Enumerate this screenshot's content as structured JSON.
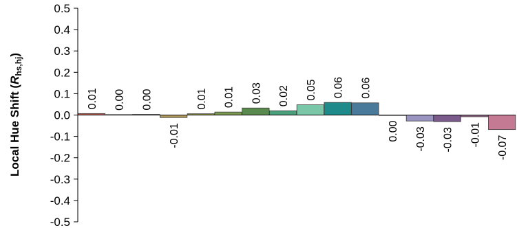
{
  "chart_data": {
    "type": "bar",
    "ylabel": {
      "prefix": "Local Hue Shift (",
      "var": "R",
      "sub": "hs,hj",
      "suffix": ")"
    },
    "ylim": [
      -0.5,
      0.5
    ],
    "yticks": [
      "0.5",
      "0.4",
      "0.3",
      "0.2",
      "0.1",
      "0.0",
      "-0.1",
      "-0.2",
      "-0.3",
      "-0.4",
      "-0.5"
    ],
    "grid": false,
    "values": [
      0.01,
      0.0,
      0.0,
      -0.01,
      0.01,
      0.01,
      0.03,
      0.02,
      0.05,
      0.06,
      0.06,
      0.0,
      -0.03,
      -0.03,
      -0.01,
      -0.07
    ],
    "value_labels": [
      "0.01",
      "0.00",
      "0.00",
      "-0.01",
      "0.01",
      "0.01",
      "0.03",
      "0.02",
      "0.05",
      "0.06",
      "0.06",
      "0.00",
      "-0.03",
      "-0.03",
      "-0.01",
      "-0.07"
    ],
    "plot_values": [
      0.007,
      0.002,
      0.003,
      -0.012,
      0.006,
      0.014,
      0.033,
      0.02,
      0.048,
      0.059,
      0.057,
      0.0,
      -0.028,
      -0.031,
      -0.008,
      -0.068
    ],
    "colors": [
      "#b85a4e",
      "#a07050",
      "#9a8060",
      "#b09a5e",
      "#8a8e40",
      "#7a9a50",
      "#5a8a50",
      "#4aa07a",
      "#7ac8a8",
      "#1e8a8a",
      "#4a7a9a",
      "#7a8ab0",
      "#9a94c0",
      "#7a5a8a",
      "#9a6a8a",
      "#c47a92"
    ]
  }
}
